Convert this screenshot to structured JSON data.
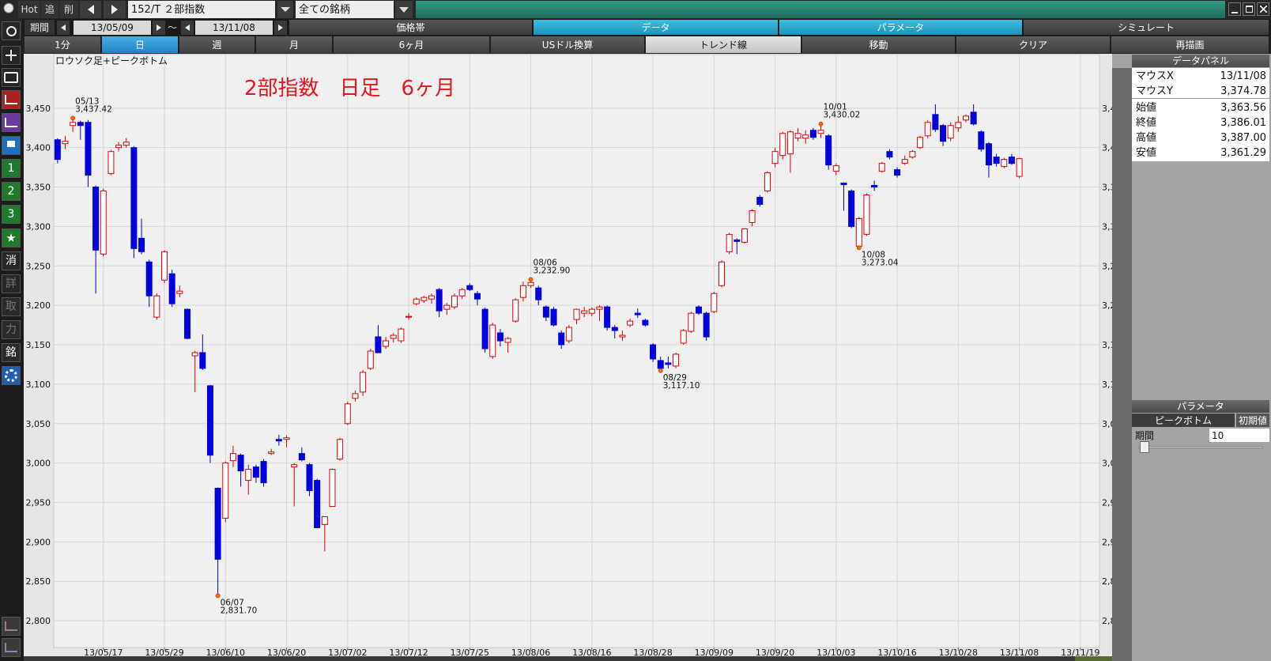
{
  "toolbar": {
    "hot": "Hot",
    "add": "追",
    "del": "削",
    "symbol": "152/T ２部指数",
    "universe": "全ての銘柄"
  },
  "period_bar": {
    "label": "期間",
    "from": "13/05/09",
    "sep": "～",
    "to": "13/11/08",
    "tabs": [
      "価格帯",
      "データ",
      "パラメータ",
      "シミュレート"
    ]
  },
  "range_bar": {
    "buttons": [
      "1分",
      "日",
      "週",
      "月",
      "6ヶ月",
      "USドル換算",
      "トレンド線",
      "移動",
      "クリア",
      "再描画"
    ]
  },
  "sidebar": [
    "1",
    "2",
    "3",
    "消",
    "詳",
    "取",
    "力",
    "銘"
  ],
  "data_panel": {
    "title": "データパネル",
    "rows": [
      [
        "マウスX",
        "13/11/08"
      ],
      [
        "マウスY",
        "3,374.78"
      ],
      [
        "始値",
        "3,363.56"
      ],
      [
        "終値",
        "3,386.01"
      ],
      [
        "高値",
        "3,387.00"
      ],
      [
        "安値",
        "3,361.29"
      ]
    ]
  },
  "param_panel": {
    "title": "パラメータ",
    "tab": "ピークボトム",
    "reset": "初期値",
    "field": "期間",
    "value": "10"
  },
  "chart_data": {
    "type": "candlestick",
    "title": "2部指数　日足　6ヶ月",
    "subtitle": "ロウソク足+ピークボトム",
    "up_color": "#e00000",
    "down_color": "#0000dd",
    "grid": true,
    "open": [
      3410,
      3405,
      3428,
      3432,
      3432,
      3350,
      3265,
      3367,
      3400,
      3403,
      3400,
      3285,
      3255,
      3185,
      3232,
      3240,
      3215,
      3195,
      3136,
      3140,
      3098,
      2968,
      2930,
      3003,
      3010,
      2978,
      2995,
      3002,
      3012,
      3030,
      3030,
      2995,
      3012,
      2998,
      2978,
      2922,
      2945,
      3005,
      3050,
      3082,
      3090,
      3120,
      3160,
      3148,
      3158,
      3155,
      3185,
      3202,
      3206,
      3208,
      3220,
      3195,
      3198,
      3212,
      3225,
      3215,
      3195,
      3135,
      3165,
      3153,
      3180,
      3210,
      3225,
      3222,
      3198,
      3195,
      3165,
      3155,
      3182,
      3190,
      3190,
      3195,
      3198,
      3172,
      3160,
      3175,
      3190,
      3181,
      3150,
      3130,
      3127,
      3123,
      3152,
      3167,
      3198,
      3190,
      3192,
      3225,
      3268,
      3283,
      3280,
      3305,
      3337,
      3345,
      3380,
      3390,
      3392,
      3412,
      3412,
      3422,
      3418,
      3415,
      3370,
      3355,
      3345,
      3275,
      3290,
      3352,
      3370,
      3395,
      3372,
      3380,
      3388,
      3400,
      3415,
      3442,
      3428,
      3412,
      3425,
      3435,
      3445,
      3420,
      3405,
      3388,
      3376,
      3388,
      3363.56
    ],
    "high": [
      3412,
      3415,
      3437.42,
      3434,
      3435,
      3352,
      3348,
      3397,
      3407,
      3412,
      3402,
      3310,
      3258,
      3215,
      3270,
      3245,
      3225,
      3196,
      3142,
      3163,
      3099,
      2969,
      3002,
      3022,
      3012,
      2998,
      2998,
      3005,
      3018,
      3036,
      3035,
      3000,
      3020,
      3000,
      2980,
      2932,
      2993,
      3032,
      3078,
      3092,
      3118,
      3145,
      3175,
      3160,
      3165,
      3172,
      3190,
      3210,
      3212,
      3215,
      3222,
      3203,
      3215,
      3222,
      3228,
      3218,
      3197,
      3178,
      3170,
      3160,
      3209,
      3230,
      3232.9,
      3225,
      3200,
      3198,
      3168,
      3175,
      3196,
      3198,
      3197,
      3200,
      3200,
      3175,
      3168,
      3183,
      3196,
      3183,
      3152,
      3135,
      3135,
      3140,
      3170,
      3192,
      3200,
      3192,
      3217,
      3257,
      3292,
      3285,
      3298,
      3322,
      3340,
      3370,
      3400,
      3420,
      3422,
      3425,
      3422,
      3425,
      3430.02,
      3417,
      3380,
      3356,
      3347,
      3312,
      3342,
      3358,
      3382,
      3398,
      3375,
      3390,
      3397,
      3415,
      3435,
      3455,
      3430,
      3432,
      3440,
      3442,
      3455,
      3422,
      3407,
      3392,
      3387,
      3392,
      3387.0
    ],
    "low": [
      3380,
      3398,
      3420,
      3410,
      3350,
      3215,
      3262,
      3365,
      3395,
      3400,
      3260,
      3265,
      3198,
      3182,
      3228,
      3198,
      3210,
      3157,
      3090,
      3118,
      3000,
      2831.7,
      2925,
      2995,
      2970,
      2960,
      2975,
      2970,
      3010,
      3022,
      3020,
      2945,
      3002,
      2958,
      2918,
      2888,
      2945,
      3003,
      3048,
      3078,
      3085,
      3118,
      3140,
      3145,
      3153,
      3152,
      3182,
      3200,
      3203,
      3202,
      3185,
      3188,
      3195,
      3208,
      3218,
      3200,
      3140,
      3132,
      3148,
      3140,
      3178,
      3205,
      3222,
      3200,
      3180,
      3173,
      3145,
      3152,
      3176,
      3185,
      3186,
      3180,
      3168,
      3158,
      3155,
      3172,
      3184,
      3173,
      3128,
      3117.1,
      3120,
      3120,
      3150,
      3165,
      3188,
      3155,
      3190,
      3223,
      3265,
      3265,
      3278,
      3300,
      3325,
      3343,
      3375,
      3385,
      3368,
      3408,
      3405,
      3410,
      3412,
      3372,
      3365,
      3320,
      3298,
      3273.04,
      3288,
      3345,
      3368,
      3385,
      3362,
      3378,
      3386,
      3398,
      3412,
      3420,
      3402,
      3408,
      3420,
      3432,
      3428,
      3395,
      3362,
      3376,
      3374,
      3378,
      3361.29
    ],
    "close": [
      3385,
      3408,
      3432,
      3428,
      3365,
      3270,
      3345,
      3395,
      3403,
      3407,
      3272,
      3268,
      3212,
      3212,
      3268,
      3202,
      3218,
      3158,
      3140,
      3120,
      3010,
      2878,
      3000,
      3012,
      2990,
      2992,
      2982,
      2975,
      3014,
      3028,
      3032,
      2998,
      3004,
      2965,
      2918,
      2932,
      2992,
      3030,
      3075,
      3088,
      3115,
      3142,
      3140,
      3155,
      3162,
      3170,
      3186,
      3208,
      3210,
      3212,
      3193,
      3200,
      3212,
      3220,
      3220,
      3208,
      3145,
      3175,
      3155,
      3158,
      3207,
      3225,
      3229,
      3207,
      3185,
      3175,
      3150,
      3172,
      3195,
      3193,
      3195,
      3198,
      3172,
      3168,
      3162,
      3180,
      3188,
      3175,
      3132,
      3120,
      3125,
      3138,
      3168,
      3190,
      3190,
      3160,
      3215,
      3255,
      3290,
      3281,
      3297,
      3320,
      3328,
      3368,
      3395,
      3418,
      3420,
      3418,
      3416,
      3413,
      3422,
      3378,
      3377,
      3353,
      3300,
      3310,
      3340,
      3350,
      3380,
      3388,
      3365,
      3385,
      3395,
      3413,
      3432,
      3423,
      3408,
      3428,
      3432,
      3440,
      3430,
      3398,
      3378,
      3380,
      3385,
      3380,
      3386.01
    ],
    "annotations": [
      {
        "date": "05/13",
        "value": 3437.42,
        "label": "3,437.42",
        "kind": "peak"
      },
      {
        "date": "06/07",
        "value": 2831.7,
        "label": "2,831.70",
        "kind": "bottom"
      },
      {
        "date": "08/06",
        "value": 3232.9,
        "label": "3,232.90",
        "kind": "peak"
      },
      {
        "date": "08/29",
        "value": 3117.1,
        "label": "3,117.10",
        "kind": "bottom"
      },
      {
        "date": "10/01",
        "value": 3430.02,
        "label": "3,430.02",
        "kind": "peak"
      },
      {
        "date": "10/08",
        "value": 3273.04,
        "label": "3,273.04",
        "kind": "bottom"
      }
    ],
    "xlim": [
      -0.5,
      136.5
    ],
    "xticks": [
      {
        "value": 6,
        "label": "13/05/17"
      },
      {
        "value": 14,
        "label": "13/05/29"
      },
      {
        "value": 22,
        "label": "13/06/10"
      },
      {
        "value": 30,
        "label": "13/06/20"
      },
      {
        "value": 38,
        "label": "13/07/02"
      },
      {
        "value": 46,
        "label": "13/07/12"
      },
      {
        "value": 54,
        "label": "13/07/25"
      },
      {
        "value": 62,
        "label": "13/08/06"
      },
      {
        "value": 70,
        "label": "13/08/16"
      },
      {
        "value": 78,
        "label": "13/08/28"
      },
      {
        "value": 86,
        "label": "13/09/09"
      },
      {
        "value": 94,
        "label": "13/09/20"
      },
      {
        "value": 102,
        "label": "13/10/03"
      },
      {
        "value": 110,
        "label": "13/10/16"
      },
      {
        "value": 118,
        "label": "13/10/28"
      },
      {
        "value": 126,
        "label": "13/11/08"
      },
      {
        "value": 134,
        "label": "13/11/19"
      }
    ],
    "ylim": [
      2766,
      3518
    ],
    "yticks": [
      {
        "value": 2800,
        "label": "2,800"
      },
      {
        "value": 2850,
        "label": "2,850"
      },
      {
        "value": 2900,
        "label": "2,900"
      },
      {
        "value": 2950,
        "label": "2,950"
      },
      {
        "value": 3000,
        "label": "3,000"
      },
      {
        "value": 3050,
        "label": "3,050"
      },
      {
        "value": 3100,
        "label": "3,100"
      },
      {
        "value": 3150,
        "label": "3,150"
      },
      {
        "value": 3200,
        "label": "3,200"
      },
      {
        "value": 3250,
        "label": "3,250"
      },
      {
        "value": 3300,
        "label": "3,300"
      },
      {
        "value": 3350,
        "label": "3,350"
      },
      {
        "value": 3400,
        "label": "3,400"
      },
      {
        "value": 3450,
        "label": "3,450"
      }
    ]
  }
}
